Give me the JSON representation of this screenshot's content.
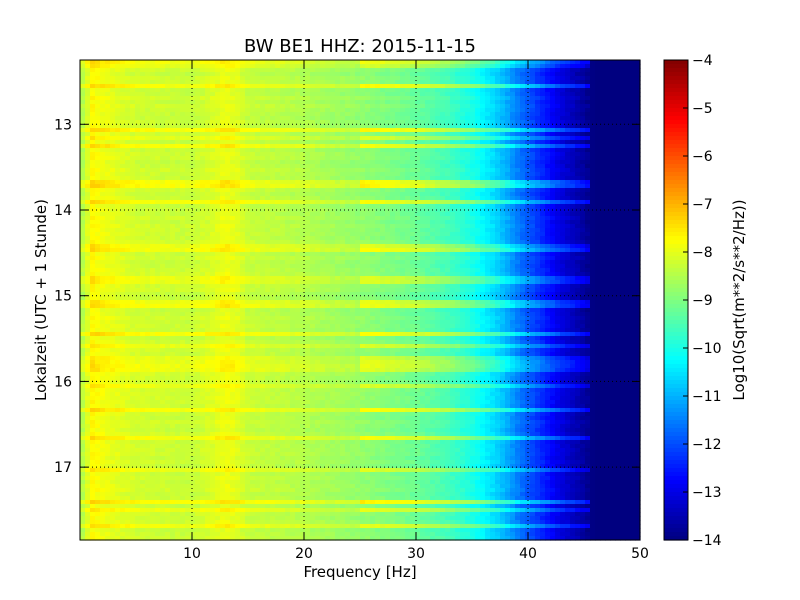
{
  "chart_data": {
    "type": "heatmap",
    "title": "BW BE1 HHZ: 2015-11-15",
    "xlabel": "Frequency [Hz]",
    "ylabel": "Lokalzeit (UTC + 1 Stunde)",
    "xlim": [
      0,
      50
    ],
    "ylim": [
      12.25,
      17.85
    ],
    "y_inverted": true,
    "x_ticks": [
      10,
      20,
      30,
      40,
      50
    ],
    "y_ticks": [
      13,
      14,
      15,
      16,
      17
    ],
    "x_tick_labels": [
      "10",
      "20",
      "30",
      "40",
      "50"
    ],
    "y_tick_labels": [
      "13",
      "14",
      "15",
      "16",
      "17"
    ],
    "grid": true,
    "colormap": "jet",
    "colorbar": {
      "label": "Log10(Sqrt(m**2/s**2/Hz))",
      "min": -14,
      "max": -4,
      "ticks": [
        -4,
        -5,
        -6,
        -7,
        -8,
        -9,
        -10,
        -11,
        -12,
        -13,
        -14
      ],
      "tick_labels": [
        "−4",
        "−5",
        "−6",
        "−7",
        "−8",
        "−9",
        "−10",
        "−11",
        "−12",
        "−13",
        "−14"
      ]
    },
    "spectrum_profile": {
      "frequency_hz": [
        0,
        0.5,
        1,
        2,
        5,
        10,
        12,
        13,
        14,
        15,
        20,
        25,
        30,
        33,
        35,
        37,
        38,
        39,
        40,
        41,
        42,
        43,
        44,
        45,
        45.5,
        46,
        50
      ],
      "log10_amplitude": [
        -8.6,
        -8.3,
        -7.7,
        -7.9,
        -8.2,
        -8.3,
        -8.1,
        -7.9,
        -8.05,
        -8.3,
        -8.5,
        -8.8,
        -9.2,
        -9.6,
        -10.0,
        -10.6,
        -11.0,
        -11.5,
        -11.9,
        -12.3,
        -12.7,
        -13.1,
        -13.4,
        -13.7,
        -13.9,
        -14.0,
        -14.0
      ]
    },
    "high_noise_hours": [
      12.3,
      12.55,
      13.05,
      13.15,
      13.25,
      13.7,
      13.9,
      14.45,
      14.8,
      14.85,
      15.1,
      15.45,
      15.6,
      15.75,
      15.85,
      16.05,
      16.35,
      16.65,
      17.05,
      17.4,
      17.5,
      17.7
    ]
  }
}
